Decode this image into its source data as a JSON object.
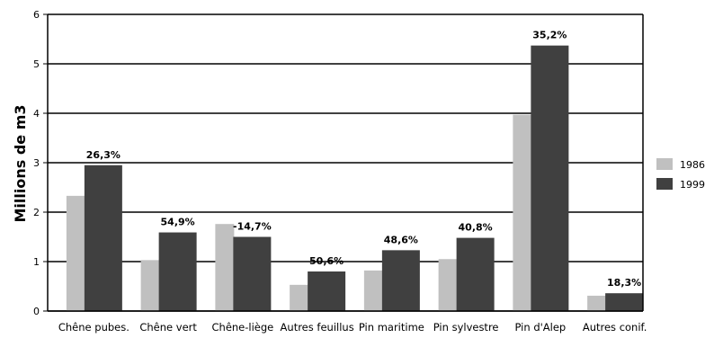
{
  "chart_data": {
    "type": "bar",
    "title": "",
    "xlabel": "",
    "ylabel": "Millions de m3",
    "ylim": [
      0,
      6
    ],
    "yticks": [
      0,
      1,
      2,
      3,
      4,
      5,
      6
    ],
    "grid": true,
    "legend_position": "right",
    "categories": [
      "Chêne pubes.",
      "Chêne vert",
      "Chêne-liège",
      "Autres feuillus",
      "Pin maritime",
      "Pin sylvestre",
      "Pin d'Alep",
      "Autres conif."
    ],
    "series": [
      {
        "name": "1986",
        "color": "#c0c0c0",
        "values": [
          2.33,
          1.03,
          1.76,
          0.53,
          0.82,
          1.05,
          3.97,
          0.31
        ]
      },
      {
        "name": "1999",
        "color": "#404040",
        "values": [
          2.95,
          1.59,
          1.5,
          0.8,
          1.23,
          1.48,
          5.37,
          0.36
        ]
      }
    ],
    "annotations": [
      "26,3%",
      "54,9%",
      "-14,7%",
      "50,6%",
      "48,6%",
      "40,8%",
      "35,2%",
      "18,3%"
    ]
  }
}
